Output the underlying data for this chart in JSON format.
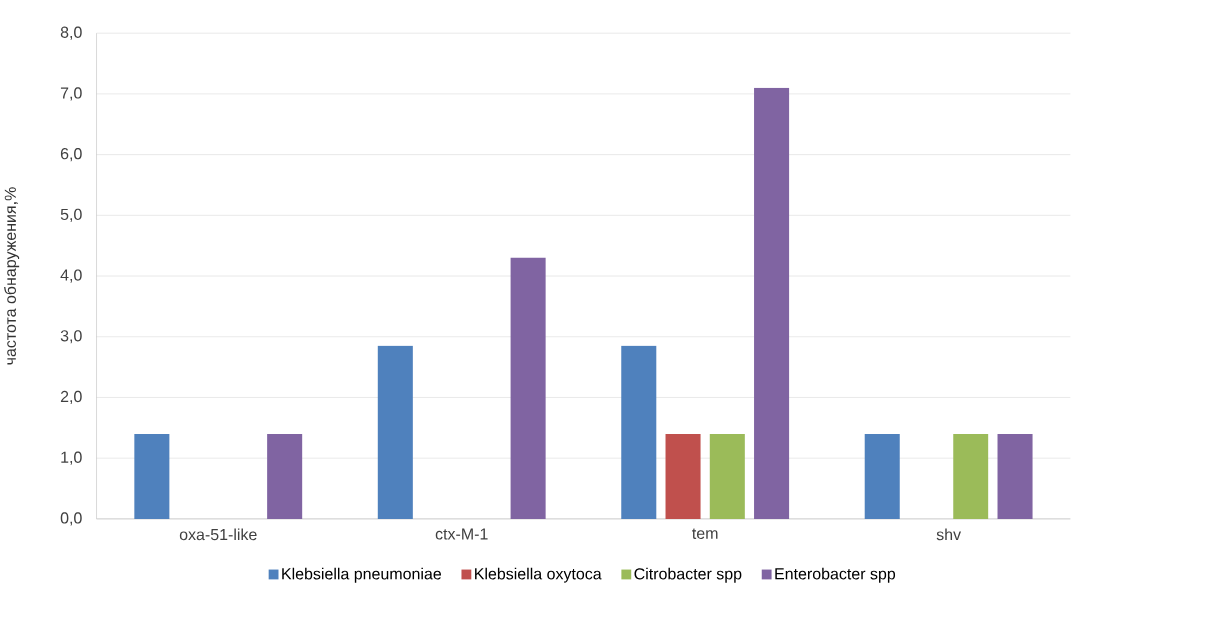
{
  "chart_data": {
    "type": "bar",
    "ylabel": "частота обнаружения,%",
    "categories": [
      "oxa-51-like",
      "ctx-M-1",
      "tem",
      "shv"
    ],
    "series": [
      {
        "name": "Klebsiella pneumoniae",
        "color": "#4f81bd",
        "values": [
          1.4,
          2.85,
          2.85,
          1.4
        ]
      },
      {
        "name": "Klebsiella oxytoca",
        "color": "#c0504d",
        "values": [
          0,
          0,
          1.4,
          0
        ]
      },
      {
        "name": "Citrobacter spp",
        "color": "#9bbb59",
        "values": [
          0,
          0,
          1.4,
          1.4
        ]
      },
      {
        "name": "Enterobacter spp",
        "color": "#8064a2",
        "values": [
          1.4,
          4.3,
          7.1,
          1.4
        ]
      }
    ],
    "ylim": [
      0,
      8
    ],
    "yticks": [
      {
        "value": 0,
        "label": "0,0"
      },
      {
        "value": 1,
        "label": "1,0"
      },
      {
        "value": 2,
        "label": "2,0"
      },
      {
        "value": 3,
        "label": "3,0"
      },
      {
        "value": 4,
        "label": "4,0"
      },
      {
        "value": 5,
        "label": "5,0"
      },
      {
        "value": 6,
        "label": "6,0"
      },
      {
        "value": 7,
        "label": "7,0"
      },
      {
        "value": 8,
        "label": "8,0"
      }
    ],
    "grid": "y",
    "legend": "bottom"
  }
}
